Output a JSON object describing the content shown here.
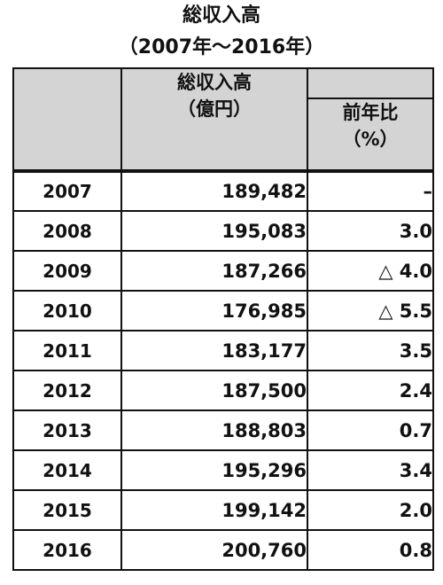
{
  "title": {
    "line1": "総収入高",
    "line2": "（2007年～2016年）"
  },
  "chart_data": {
    "type": "table",
    "columns": {
      "year": "",
      "revenue": [
        "総収入高",
        "（億円）"
      ],
      "yoy": [
        "前年比",
        "（%）"
      ]
    },
    "rows": [
      {
        "year": "2007",
        "revenue": "189,482",
        "yoy": "–"
      },
      {
        "year": "2008",
        "revenue": "195,083",
        "yoy": "3.0"
      },
      {
        "year": "2009",
        "revenue": "187,266",
        "yoy": "△ 4.0"
      },
      {
        "year": "2010",
        "revenue": "176,985",
        "yoy": "△ 5.5"
      },
      {
        "year": "2011",
        "revenue": "183,177",
        "yoy": "3.5"
      },
      {
        "year": "2012",
        "revenue": "187,500",
        "yoy": "2.4"
      },
      {
        "year": "2013",
        "revenue": "188,803",
        "yoy": "0.7"
      },
      {
        "year": "2014",
        "revenue": "195,296",
        "yoy": "3.4"
      },
      {
        "year": "2015",
        "revenue": "199,142",
        "yoy": "2.0"
      },
      {
        "year": "2016",
        "revenue": "200,760",
        "yoy": "0.8"
      }
    ]
  }
}
